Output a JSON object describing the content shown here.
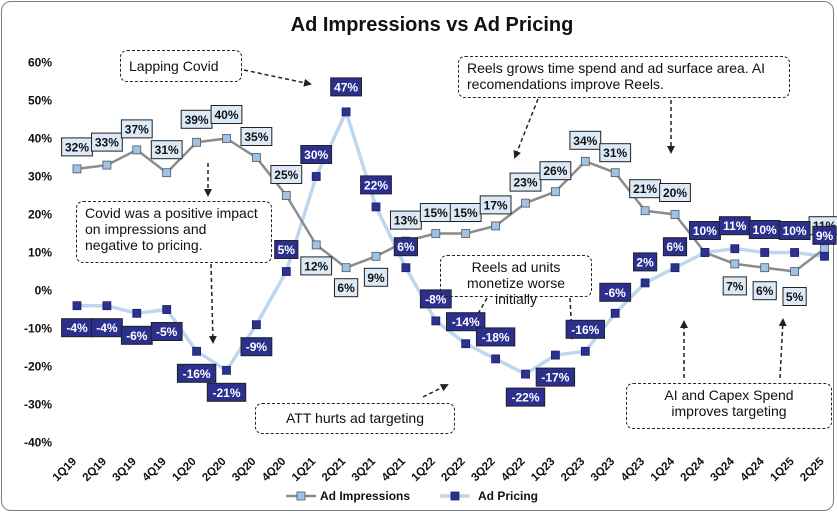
{
  "colors": {
    "impressions_line": "#8c8c8c",
    "impressions_marker": "#9dc3e6",
    "pricing_line": "#bdd7ee",
    "pricing_marker": "#2e3192",
    "impressions_label_bg": "#dce9f7",
    "pricing_label_bg": "#2b2f8e"
  },
  "annotations": [
    {
      "id": "lapping-covid",
      "text": "Lapping Covid",
      "style": "gray"
    },
    {
      "id": "reels-grows",
      "text": "Reels grows time spend and ad surface area. AI recomendations improve Reels.",
      "style": "yellow"
    },
    {
      "id": "covid-impact",
      "text": "Covid was a positive impact on impressions and negative to pricing.",
      "style": "gray"
    },
    {
      "id": "reels-ad-units",
      "text": "Reels ad units monetize worse initially",
      "style": "yellow"
    },
    {
      "id": "att",
      "text": "ATT hurts ad targeting",
      "style": "yellow"
    },
    {
      "id": "ai-capex",
      "text": "AI and Capex Spend improves targeting",
      "style": "yellow"
    }
  ],
  "chart_data": {
    "type": "line",
    "title": "Ad Impressions vs Ad Pricing",
    "xlabel": "",
    "ylabel": "",
    "ylim": [
      -40,
      60
    ],
    "yticks": [
      "-40%",
      "-30%",
      "-20%",
      "-10%",
      "0%",
      "10%",
      "20%",
      "30%",
      "40%",
      "50%",
      "60%"
    ],
    "grid": false,
    "legend_position": "bottom",
    "categories": [
      "1Q19",
      "2Q19",
      "3Q19",
      "4Q19",
      "1Q20",
      "2Q20",
      "3Q20",
      "4Q20",
      "1Q21",
      "2Q21",
      "3Q21",
      "4Q21",
      "1Q22",
      "2Q22",
      "3Q22",
      "4Q22",
      "1Q23",
      "2Q23",
      "3Q23",
      "4Q23",
      "1Q24",
      "2Q24",
      "3Q24",
      "4Q24",
      "1Q25",
      "2Q25"
    ],
    "series": [
      {
        "name": "Ad Impressions",
        "values": [
          32,
          33,
          37,
          31,
          39,
          40,
          35,
          25,
          12,
          6,
          9,
          13,
          15,
          15,
          17,
          23,
          26,
          34,
          31,
          21,
          20,
          10,
          7,
          6,
          5,
          11
        ],
        "labels": [
          "32%",
          "33%",
          "37%",
          "31%",
          "39%",
          "40%",
          "35%",
          "25%",
          "12%",
          "6%",
          "9%",
          "13%",
          "15%",
          "15%",
          "17%",
          "23%",
          "26%",
          "34%",
          "31%",
          "21%",
          "20%",
          "10%",
          "7%",
          "6%",
          "5%",
          "11%"
        ]
      },
      {
        "name": "Ad Pricing",
        "values": [
          -4,
          -4,
          -6,
          -5,
          -16,
          -21,
          -9,
          5,
          30,
          47,
          22,
          6,
          -8,
          -14,
          -18,
          -22,
          -17,
          -16,
          -6,
          2,
          6,
          10,
          11,
          10,
          10,
          9
        ],
        "labels": [
          "-4%",
          "-4%",
          "-6%",
          "-5%",
          "-16%",
          "-21%",
          "-9%",
          "5%",
          "30%",
          "47%",
          "22%",
          "6%",
          "-8%",
          "-14%",
          "-18%",
          "-22%",
          "-17%",
          "-16%",
          "-6%",
          "2%",
          "6%",
          "10%",
          "11%",
          "10%",
          "10%",
          "9%"
        ]
      }
    ]
  }
}
